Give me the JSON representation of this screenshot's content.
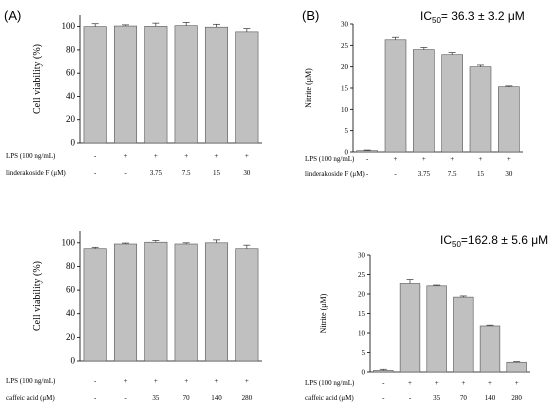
{
  "panels": {
    "a_label": "(A)",
    "b_label": "(B)"
  },
  "chart_data": [
    {
      "id": "a_top",
      "type": "bar",
      "ylabel": "Cell viability (%)",
      "ylim": [
        0,
        110
      ],
      "yticks": [
        0,
        20,
        40,
        60,
        80,
        100
      ],
      "values": [
        100,
        100.5,
        100.2,
        100.8,
        99.5,
        95.5
      ],
      "errors": [
        2.5,
        1.0,
        2.8,
        2.8,
        2.5,
        2.8
      ],
      "row_labels": [
        "LPS (100 ng/mL)",
        "linderakoside F (μM)"
      ],
      "row1": [
        "-",
        "+",
        "+",
        "+",
        "+",
        "+"
      ],
      "row2": [
        "-",
        "-",
        "3.75",
        "7.5",
        "15",
        "30"
      ],
      "bar_color": "#c0c0c0",
      "ic50_main": "",
      "ic50_sub": "",
      "ic50_rest": ""
    },
    {
      "id": "b_top",
      "type": "bar",
      "ylabel": "Nitrite (μM)",
      "ylim": [
        0,
        30
      ],
      "yticks": [
        0,
        5,
        10,
        15,
        20,
        25,
        30
      ],
      "values": [
        0.3,
        26.3,
        24.0,
        22.8,
        20.0,
        15.3
      ],
      "errors": [
        0.15,
        0.6,
        0.5,
        0.5,
        0.4,
        0.2
      ],
      "row_labels": [
        "LPS (100 ng/mL)",
        "linderakoside F (μM)"
      ],
      "row1": [
        "-",
        "+",
        "+",
        "+",
        "+",
        "+"
      ],
      "row2": [
        "-",
        "-",
        "3.75",
        "7.5",
        "15",
        "30"
      ],
      "bar_color": "#c0c0c0",
      "ic50_main": "IC",
      "ic50_sub": "50",
      "ic50_rest": "= 36.3 ± 3.2 μM"
    },
    {
      "id": "a_bottom",
      "type": "bar",
      "ylabel": "Cell viability (%)",
      "ylim": [
        0,
        110
      ],
      "yticks": [
        0,
        20,
        40,
        60,
        80,
        100
      ],
      "values": [
        95,
        99,
        100.5,
        99,
        100,
        95
      ],
      "errors": [
        1.2,
        0.8,
        1.5,
        1.0,
        2.5,
        3.0
      ],
      "row_labels": [
        "LPS (100 ng/mL)",
        "caffeic acid (μM)"
      ],
      "row1": [
        "-",
        "+",
        "+",
        "+",
        "+",
        "+"
      ],
      "row2": [
        "-",
        "-",
        "35",
        "70",
        "140",
        "280"
      ],
      "bar_color": "#c0c0c0",
      "ic50_main": "",
      "ic50_sub": "",
      "ic50_rest": ""
    },
    {
      "id": "b_bottom",
      "type": "bar",
      "ylabel": "Nitrite (μM)",
      "ylim": [
        0,
        30
      ],
      "yticks": [
        0,
        5,
        10,
        15,
        20,
        25,
        30
      ],
      "values": [
        0.4,
        22.7,
        22.1,
        19.2,
        11.8,
        2.5
      ],
      "errors": [
        0.3,
        1.0,
        0.2,
        0.3,
        0.2,
        0.15
      ],
      "row_labels": [
        "LPS (100 ng/mL)",
        "caffeic acid (μM)"
      ],
      "row1": [
        "-",
        "+",
        "+",
        "+",
        "+",
        "+"
      ],
      "row2": [
        "-",
        "-",
        "35",
        "70",
        "140",
        "280"
      ],
      "bar_color": "#c0c0c0",
      "ic50_main": "IC",
      "ic50_sub": "50",
      "ic50_rest": "=162.8 ± 5.6 μM"
    }
  ]
}
